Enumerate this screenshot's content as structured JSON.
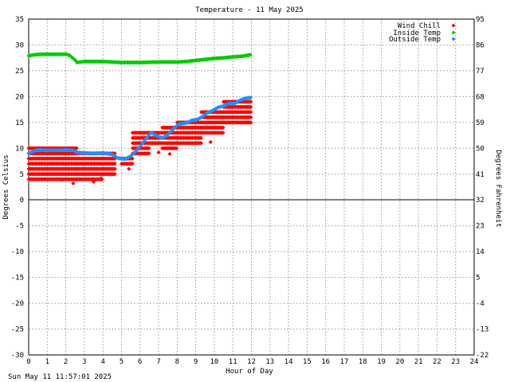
{
  "timestamp": "Sun May 11 11:57:01 2025",
  "chart_data": {
    "type": "scatter",
    "title": "Temperature - 11 May 2025",
    "xlabel": "Hour of Day",
    "ylabel": "Degrees Celsius",
    "ylabel_right": "Degrees Fahrenheit",
    "xlim": [
      0,
      24
    ],
    "ylim": [
      -30,
      35
    ],
    "x_ticks": [
      "0",
      "1",
      "2",
      "3",
      "4",
      "5",
      "6",
      "7",
      "8",
      "9",
      "10",
      "11",
      "12",
      "13",
      "14",
      "15",
      "16",
      "17",
      "18",
      "19",
      "20",
      "21",
      "22",
      "23",
      "24"
    ],
    "y_ticks": [
      "35",
      "30",
      "25",
      "20",
      "15",
      "10",
      "5",
      "0",
      "-5",
      "-10",
      "-15",
      "-20",
      "-25",
      "-30"
    ],
    "y_ticks_right": [
      "95",
      "86",
      "77",
      "68",
      "59",
      "50",
      "41",
      "32",
      "23",
      "14",
      "5",
      "-4",
      "-13",
      "-22"
    ],
    "grid": true,
    "legend_position": "top-right",
    "colors": {
      "wind_chill": "#ff0000",
      "inside_temp": "#00cc00",
      "outside_temp": "#1e90ff"
    },
    "series": [
      {
        "name": "Wind Chill",
        "color": "#ff0000",
        "bands": [
          {
            "x": [
              0.0,
              2.6
            ],
            "y": [
              4,
              10
            ]
          },
          {
            "x": [
              2.6,
              4.0
            ],
            "y": [
              4,
              9
            ]
          },
          {
            "x": [
              4.0,
              4.7
            ],
            "y": [
              5,
              9
            ]
          },
          {
            "x": [
              5.0,
              5.6
            ],
            "y": [
              7,
              8
            ]
          },
          {
            "x": [
              5.6,
              6.5
            ],
            "y": [
              9,
              13
            ]
          },
          {
            "x": [
              6.5,
              7.2
            ],
            "y": [
              11,
              13
            ]
          },
          {
            "x": [
              7.2,
              8.0
            ],
            "y": [
              10,
              14
            ]
          },
          {
            "x": [
              8.0,
              9.3
            ],
            "y": [
              11,
              15
            ]
          },
          {
            "x": [
              9.3,
              10.5
            ],
            "y": [
              13,
              17
            ]
          },
          {
            "x": [
              10.5,
              12.0
            ],
            "y": [
              15,
              19
            ]
          }
        ],
        "outliers": [
          [
            0.7,
            9.5
          ],
          [
            1.8,
            3.9
          ],
          [
            2.4,
            3.2
          ],
          [
            3.5,
            3.5
          ],
          [
            3.9,
            4.2
          ],
          [
            5.4,
            6.0
          ],
          [
            7.0,
            9.2
          ],
          [
            7.6,
            8.9
          ],
          [
            9.8,
            11.2
          ]
        ]
      },
      {
        "name": "Inside Temp",
        "color": "#00cc00",
        "x": [
          0.0,
          0.3,
          0.7,
          1.0,
          1.5,
          2.0,
          2.2,
          2.5,
          2.6,
          2.8,
          3.0,
          3.5,
          4.0,
          4.5,
          5.0,
          6.0,
          7.0,
          8.0,
          8.5,
          9.0,
          9.5,
          10.0,
          10.5,
          11.0,
          11.5,
          11.95
        ],
        "y": [
          27.9,
          28.1,
          28.2,
          28.2,
          28.2,
          28.2,
          28.0,
          27.1,
          26.6,
          26.7,
          26.8,
          26.8,
          26.8,
          26.7,
          26.6,
          26.6,
          26.7,
          26.7,
          26.8,
          27.0,
          27.2,
          27.4,
          27.5,
          27.7,
          27.8,
          28.1
        ]
      },
      {
        "name": "Outside Temp",
        "color": "#1e90ff",
        "x": [
          0.0,
          0.3,
          0.6,
          1.0,
          1.5,
          2.0,
          2.4,
          2.6,
          3.0,
          3.5,
          4.0,
          4.5,
          4.8,
          5.2,
          5.5,
          5.8,
          6.1,
          6.4,
          6.6,
          6.9,
          7.2,
          7.5,
          7.8,
          8.1,
          8.5,
          8.8,
          9.1,
          9.4,
          9.6,
          9.9,
          10.2,
          10.5,
          10.8,
          11.1,
          11.4,
          11.7,
          11.95
        ],
        "y": [
          9.0,
          9.5,
          9.7,
          9.6,
          9.6,
          9.7,
          9.6,
          9.2,
          9.1,
          9.0,
          9.1,
          8.8,
          8.1,
          7.9,
          8.5,
          9.5,
          10.8,
          12.2,
          13.0,
          12.4,
          12.0,
          12.6,
          13.8,
          14.7,
          14.9,
          15.4,
          15.6,
          16.2,
          16.8,
          17.3,
          17.9,
          18.2,
          18.7,
          18.7,
          19.3,
          19.7,
          19.8
        ]
      }
    ]
  }
}
